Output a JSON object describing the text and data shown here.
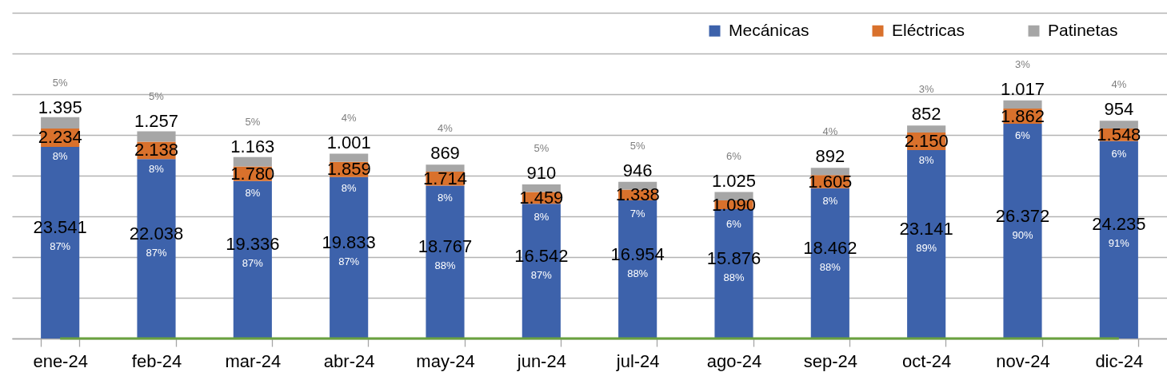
{
  "chart_data": {
    "type": "bar",
    "stacked": true,
    "grid": "y",
    "legend": "top right",
    "tick_labels": "x",
    "categories": [
      "ene-24",
      "feb-24",
      "mar-24",
      "abr-24",
      "may-24",
      "jun-24",
      "jul-24",
      "ago-24",
      "sep-24",
      "oct-24",
      "nov-24",
      "dic-24"
    ],
    "series": [
      {
        "name": "Mecánicas",
        "color": "#3d62ab",
        "values": [
          23541,
          22038,
          19336,
          19833,
          18767,
          16542,
          16954,
          15876,
          18462,
          23141,
          26372,
          24235
        ],
        "value_labels": [
          "23.541",
          "22.038",
          "19.336",
          "19.833",
          "18.767",
          "16.542",
          "16.954",
          "15.876",
          "18.462",
          "23.141",
          "26.372",
          "24.235"
        ]
      },
      {
        "name": "Eléctricas",
        "color": "#d9712c",
        "values": [
          2234,
          2138,
          1780,
          1859,
          1714,
          1459,
          1338,
          1090,
          1605,
          2150,
          1862,
          1548
        ],
        "value_labels": [
          "2.234",
          "2.138",
          "1.780",
          "1.859",
          "1.714",
          "1.459",
          "1.338",
          "1.090",
          "1.605",
          "2.150",
          "1.862",
          "1.548"
        ]
      },
      {
        "name": "Patinetas",
        "color": "#a6a6a6",
        "values": [
          1395,
          1257,
          1163,
          1001,
          869,
          910,
          946,
          1025,
          892,
          852,
          1017,
          954
        ],
        "value_labels": [
          "1.395",
          "1.257",
          "1.163",
          "1.001",
          "869",
          "910",
          "946",
          "1.025",
          "892",
          "852",
          "1.017",
          "954"
        ]
      }
    ],
    "annotations": [
      "87%",
      "87%",
      "87%",
      "87%",
      "88%",
      "87%",
      "88%",
      "88%",
      "88%",
      "89%",
      "90%",
      "91%",
      "8%",
      "8%",
      "8%",
      "8%",
      "8%",
      "8%",
      "7%",
      "6%",
      "8%",
      "8%",
      "6%",
      "6%",
      "5%",
      "5%",
      "5%",
      "4%",
      "4%",
      "5%",
      "5%",
      "6%",
      "4%",
      "3%",
      "3%",
      "4%"
    ],
    "ref_lines": [
      {
        "axis": "y",
        "value": 0,
        "color": "#6aa23f"
      }
    ]
  }
}
